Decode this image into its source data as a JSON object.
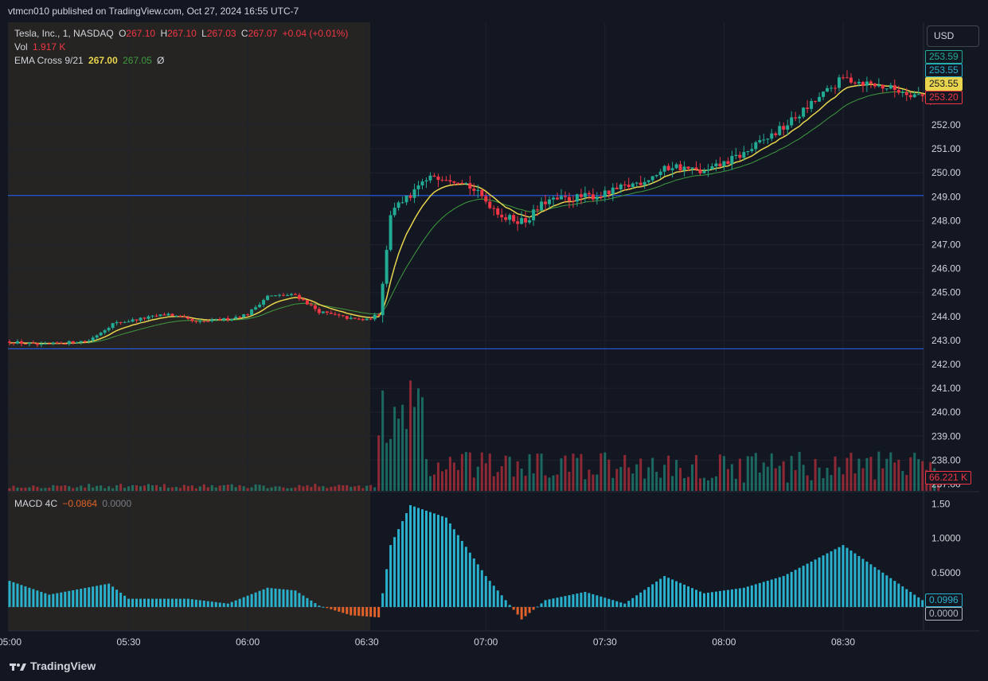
{
  "publish_line": "vtmcn010 published on TradingView.com, Oct 27, 2024 16:55 UTC-7",
  "symbol_legend": {
    "name": "Tesla, Inc., 1, NASDAQ",
    "o_key": "O",
    "o_val": "267.10",
    "h_key": "H",
    "h_val": "267.10",
    "l_key": "L",
    "l_val": "267.03",
    "c_key": "C",
    "c_val": "267.07",
    "change": "+0.04 (+0.01%)"
  },
  "vol_legend": {
    "label": "Vol",
    "value": "1.917 K"
  },
  "ema_legend": {
    "label": "EMA Cross 9/21",
    "fast": "267.00",
    "slow": "267.05",
    "extra": "Ø"
  },
  "macd_legend": {
    "label": "MACD 4C",
    "value": "−0.0864",
    "zero": "0.0000"
  },
  "currency_button": "USD",
  "brand": "TradingView",
  "price_tags": [
    {
      "text": "253.59",
      "color": "#22ab94",
      "bg": "#131722",
      "border": "#22ab94"
    },
    {
      "text": "253.55",
      "color": "#2ab1ce",
      "bg": "#131722",
      "border": "#2ab1ce"
    },
    {
      "text": "253.55",
      "color": "#131722",
      "bg": "#e8d44d",
      "border": "#e8d44d"
    },
    {
      "text": "253.20",
      "color": "#f23645",
      "bg": "#131722",
      "border": "#f23645"
    }
  ],
  "volume_tag": {
    "text": "66.221 K",
    "color": "#f23645"
  },
  "macd_tags": [
    {
      "text": "0.0996",
      "color": "#2ab1ce"
    },
    {
      "text": "0.0000",
      "color": "#b2b5be"
    }
  ],
  "colors": {
    "up": "#22ab94",
    "down": "#f23645",
    "ema_fast": "#e8d44d",
    "ema_slow": "#3f9a3f",
    "hline": "#2962ff",
    "macd_pos": "#2ab1ce",
    "macd_neg": "#e0622a",
    "premarket_shade": "#2a2520"
  },
  "chart_data": {
    "type": "candlestick",
    "price_axis": {
      "ticks": [
        "252.00",
        "251.00",
        "250.00",
        "249.00",
        "248.00",
        "247.00",
        "246.00",
        "245.00",
        "244.00",
        "243.00",
        "242.00",
        "241.00",
        "240.00",
        "239.00",
        "238.00",
        "237.00"
      ],
      "range": [
        236.9,
        253.9
      ]
    },
    "time_axis": {
      "ticks": [
        "05:00",
        "05:30",
        "06:00",
        "06:30",
        "07:00",
        "07:30",
        "08:00",
        "08:30"
      ]
    },
    "horizontal_lines": [
      249.05,
      242.65
    ],
    "macd_axis": {
      "ticks": [
        "1.50",
        "1.0000",
        "0.5000",
        "0.0000"
      ]
    },
    "price_keypoints": [
      {
        "t": "05:00",
        "p": 242.95
      },
      {
        "t": "05:08",
        "p": 242.8
      },
      {
        "t": "05:20",
        "p": 243.0
      },
      {
        "t": "05:26",
        "p": 243.7
      },
      {
        "t": "05:40",
        "p": 244.1
      },
      {
        "t": "05:47",
        "p": 243.75
      },
      {
        "t": "05:55",
        "p": 243.9
      },
      {
        "t": "06:00",
        "p": 244.1
      },
      {
        "t": "06:05",
        "p": 244.85
      },
      {
        "t": "06:12",
        "p": 244.9
      },
      {
        "t": "06:18",
        "p": 244.2
      },
      {
        "t": "06:26",
        "p": 243.9
      },
      {
        "t": "06:30",
        "p": 243.85
      },
      {
        "t": "06:33",
        "p": 244.1
      },
      {
        "t": "06:36",
        "p": 248.3
      },
      {
        "t": "06:40",
        "p": 248.9
      },
      {
        "t": "06:47",
        "p": 249.9
      },
      {
        "t": "06:54",
        "p": 249.7
      },
      {
        "t": "07:05",
        "p": 248.1
      },
      {
        "t": "07:10",
        "p": 248.0
      },
      {
        "t": "07:15",
        "p": 248.8
      },
      {
        "t": "07:30",
        "p": 249.1
      },
      {
        "t": "07:40",
        "p": 249.7
      },
      {
        "t": "07:47",
        "p": 250.3
      },
      {
        "t": "07:55",
        "p": 250.0
      },
      {
        "t": "08:05",
        "p": 250.8
      },
      {
        "t": "08:15",
        "p": 251.9
      },
      {
        "t": "08:30",
        "p": 253.95
      },
      {
        "t": "08:40",
        "p": 253.6
      },
      {
        "t": "08:50",
        "p": 253.2
      }
    ],
    "macd_keypoints": [
      {
        "t": "05:00",
        "v": 0.38
      },
      {
        "t": "05:10",
        "v": 0.18
      },
      {
        "t": "05:25",
        "v": 0.34
      },
      {
        "t": "05:30",
        "v": 0.12
      },
      {
        "t": "05:45",
        "v": 0.12
      },
      {
        "t": "05:55",
        "v": 0.05
      },
      {
        "t": "06:05",
        "v": 0.28
      },
      {
        "t": "06:12",
        "v": 0.24
      },
      {
        "t": "06:18",
        "v": 0.02
      },
      {
        "t": "06:26",
        "v": -0.12
      },
      {
        "t": "06:33",
        "v": -0.15
      },
      {
        "t": "06:36",
        "v": 0.9
      },
      {
        "t": "06:41",
        "v": 1.48
      },
      {
        "t": "06:50",
        "v": 1.3
      },
      {
        "t": "07:00",
        "v": 0.45
      },
      {
        "t": "07:05",
        "v": 0.1
      },
      {
        "t": "07:09",
        "v": -0.18
      },
      {
        "t": "07:15",
        "v": 0.1
      },
      {
        "t": "07:25",
        "v": 0.22
      },
      {
        "t": "07:35",
        "v": 0.05
      },
      {
        "t": "07:45",
        "v": 0.45
      },
      {
        "t": "07:55",
        "v": 0.2
      },
      {
        "t": "08:05",
        "v": 0.28
      },
      {
        "t": "08:15",
        "v": 0.45
      },
      {
        "t": "08:30",
        "v": 0.9
      },
      {
        "t": "08:40",
        "v": 0.5
      },
      {
        "t": "08:50",
        "v": 0.1
      }
    ]
  }
}
